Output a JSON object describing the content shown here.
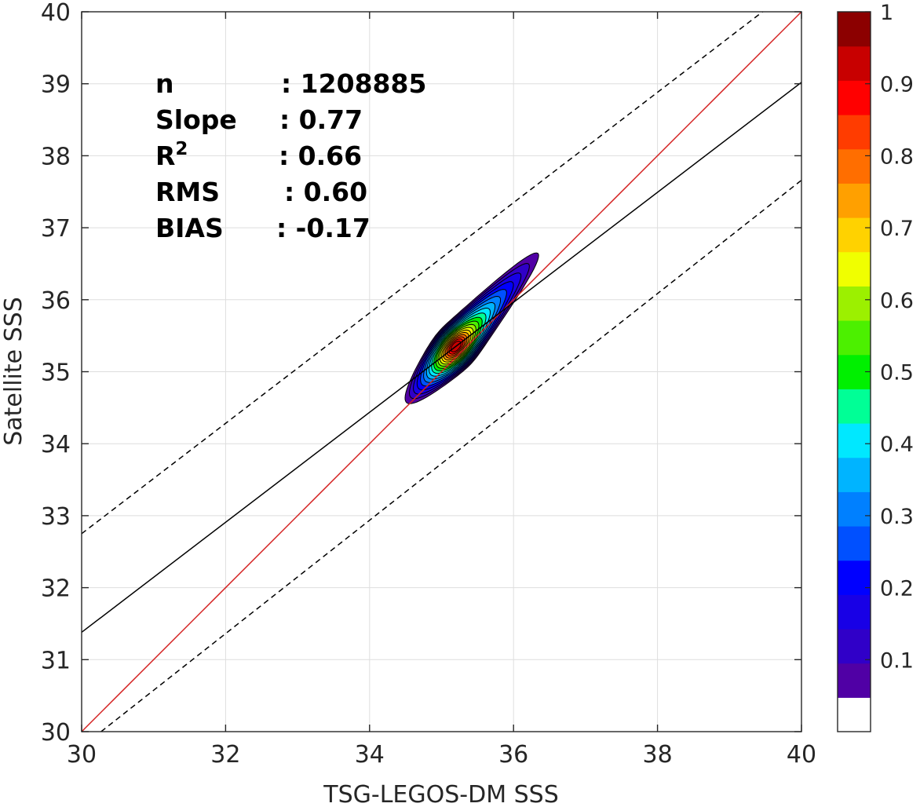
{
  "chart_data": {
    "type": "contour-density",
    "xlabel": "TSG-LEGOS-DM SSS",
    "ylabel": "Satellite SSS",
    "xlim": [
      30,
      40
    ],
    "ylim": [
      30,
      40
    ],
    "x_ticks": [
      30,
      32,
      34,
      36,
      38,
      40
    ],
    "y_ticks": [
      30,
      31,
      32,
      33,
      34,
      35,
      36,
      37,
      38,
      39,
      40
    ],
    "grid": true,
    "stats": [
      {
        "label": "n",
        "sep": ":",
        "value": "1208885"
      },
      {
        "label": "Slope",
        "sep": ":",
        "value": "0.77"
      },
      {
        "label": "R",
        "sup": "2",
        "sep": ":",
        "value": "0.66"
      },
      {
        "label": "RMS",
        "sep": ":",
        "value": "0.60"
      },
      {
        "label": "BIAS",
        "sep": ":",
        "value": "-0.17"
      }
    ],
    "lines": [
      {
        "name": "one-to-one",
        "style": "solid",
        "color": "#d42020",
        "points": [
          [
            30,
            30
          ],
          [
            40,
            40
          ]
        ]
      },
      {
        "name": "regression",
        "style": "solid",
        "color": "#000000",
        "points": [
          [
            30,
            31.38
          ],
          [
            40,
            39.02
          ]
        ]
      },
      {
        "name": "upper-bound",
        "style": "dashed",
        "color": "#000000",
        "points": [
          [
            30,
            32.75
          ],
          [
            39.46,
            40
          ]
        ]
      },
      {
        "name": "lower-bound",
        "style": "dashed",
        "color": "#000000",
        "points": [
          [
            30.27,
            30
          ],
          [
            40,
            37.66
          ]
        ]
      }
    ],
    "density_peak": [
      35.2,
      35.35
    ],
    "contour_levels": [
      0.05,
      0.1,
      0.15,
      0.2,
      0.25,
      0.3,
      0.35,
      0.4,
      0.45,
      0.5,
      0.55,
      0.6,
      0.65,
      0.7,
      0.75,
      0.8,
      0.85,
      0.9,
      0.95
    ],
    "colorbar": {
      "ticks": [
        "0.1",
        "0.2",
        "0.3",
        "0.4",
        "0.5",
        "0.6",
        "0.7",
        "0.8",
        "0.9",
        "1"
      ],
      "min": 0,
      "max": 1,
      "colors": [
        "#ffffff",
        "#5000a5",
        "#3000c8",
        "#1800e6",
        "#0000ff",
        "#0050ff",
        "#0080ff",
        "#00b4ff",
        "#00e8ff",
        "#00ff96",
        "#00f000",
        "#4cf000",
        "#9cf000",
        "#f0ff00",
        "#ffd200",
        "#ffa000",
        "#ff6e00",
        "#ff3c00",
        "#ff0000",
        "#c80000",
        "#8c0000"
      ]
    }
  }
}
